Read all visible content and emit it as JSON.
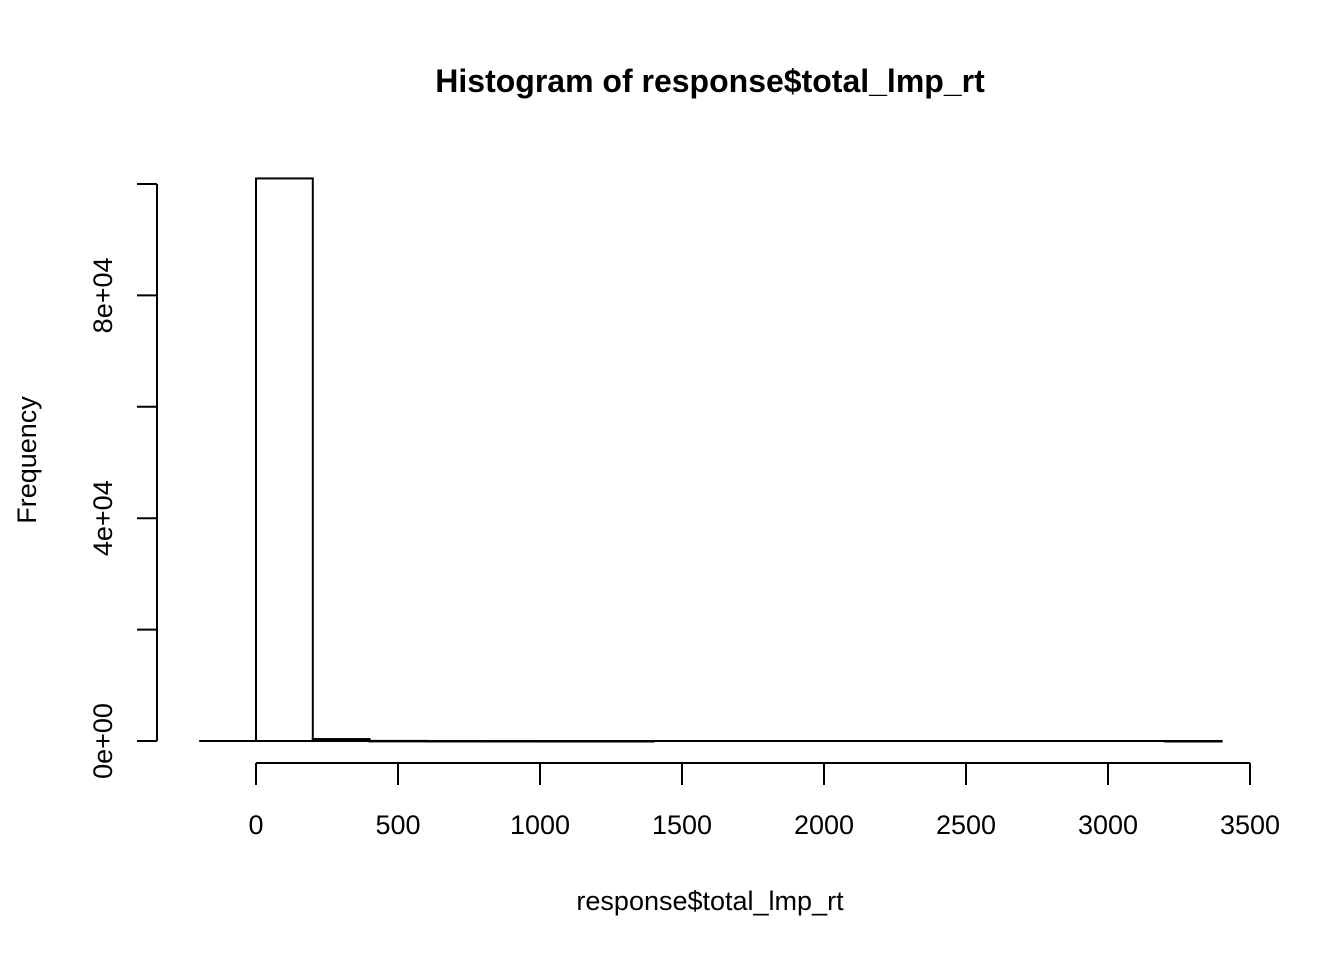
{
  "chart_data": {
    "type": "bar",
    "subtype": "histogram",
    "title": "Histogram of response$total_lmp_rt",
    "xlabel": "response$total_lmp_rt",
    "ylabel": "Frequency",
    "bin_width": 200,
    "bins": [
      {
        "start": 0,
        "end": 200,
        "count": 101000
      },
      {
        "start": 200,
        "end": 400,
        "count": 350
      },
      {
        "start": 400,
        "end": 600,
        "count": 20
      },
      {
        "start": 600,
        "end": 800,
        "count": 5
      },
      {
        "start": 800,
        "end": 1000,
        "count": 2
      },
      {
        "start": 1000,
        "end": 1200,
        "count": 1
      },
      {
        "start": 1200,
        "end": 1400,
        "count": 1
      },
      {
        "start": 1400,
        "end": 1600,
        "count": 0
      },
      {
        "start": 1600,
        "end": 1800,
        "count": 0
      },
      {
        "start": 1800,
        "end": 2000,
        "count": 0
      },
      {
        "start": 2000,
        "end": 2200,
        "count": 0
      },
      {
        "start": 2200,
        "end": 2400,
        "count": 0
      },
      {
        "start": 2400,
        "end": 2600,
        "count": 0
      },
      {
        "start": 2600,
        "end": 2800,
        "count": 0
      },
      {
        "start": 2800,
        "end": 3000,
        "count": 0
      },
      {
        "start": 3000,
        "end": 3200,
        "count": 0
      },
      {
        "start": 3200,
        "end": 3400,
        "count": 1
      }
    ],
    "baseline_range": [
      -200,
      3400
    ],
    "xticks": [
      0,
      500,
      1000,
      1500,
      2000,
      2500,
      3000,
      3500
    ],
    "xtick_labels": [
      "0",
      "500",
      "1000",
      "1500",
      "2000",
      "2500",
      "3000",
      "3500"
    ],
    "xlim": [
      0,
      3500
    ],
    "yticks": [
      0,
      20000,
      40000,
      60000,
      80000,
      100000
    ],
    "ytick_labels": [
      "0e+00",
      "",
      "4e+04",
      "",
      "8e+04",
      ""
    ],
    "ylim": [
      0,
      100000
    ],
    "grid": false,
    "legend": "none"
  }
}
